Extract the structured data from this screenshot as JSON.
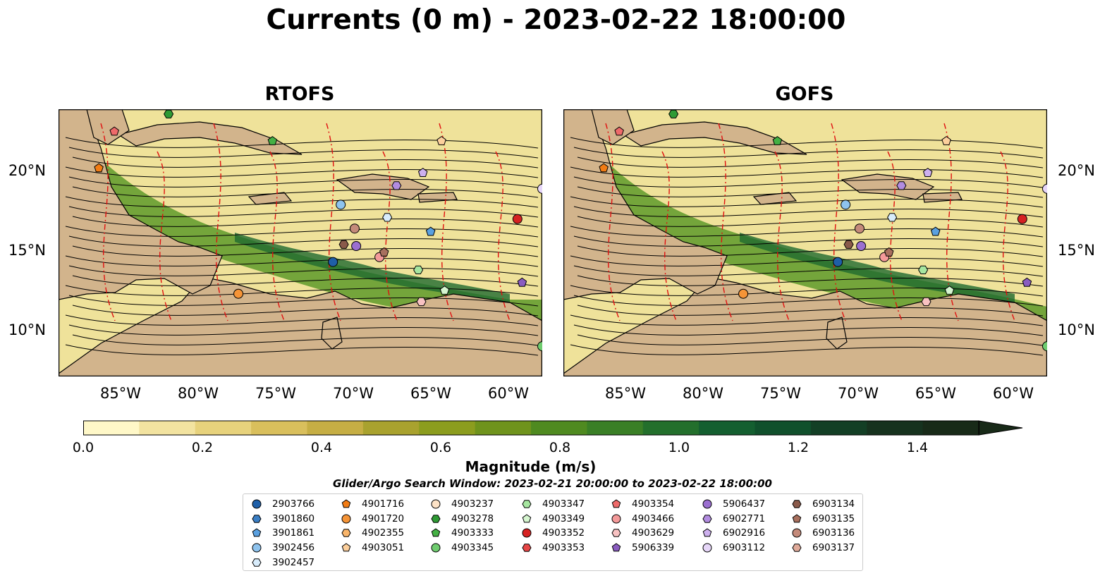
{
  "title": "Currents (0 m) - 2023-02-22 18:00:00",
  "panels": [
    {
      "name": "RTOFS"
    },
    {
      "name": "GOFS"
    }
  ],
  "lon_ticks": [
    "85°W",
    "80°W",
    "75°W",
    "70°W",
    "65°W",
    "60°W"
  ],
  "lat_ticks": [
    "20°N",
    "15°N",
    "10°N"
  ],
  "colorbar": {
    "label": "Magnitude (m/s)",
    "ticks": [
      "0.0",
      "0.2",
      "0.4",
      "0.6",
      "0.8",
      "1.0",
      "1.2",
      "1.4"
    ],
    "range": [
      0,
      1.6
    ],
    "extend": "max",
    "colors": [
      "#fff8c8",
      "#f2e3a0",
      "#e7d27c",
      "#d9bf5c",
      "#c6ae44",
      "#a9a22e",
      "#8c9d1e",
      "#6f931c",
      "#4f8a20",
      "#3a7f26",
      "#236f2c",
      "#145f30",
      "#10502c",
      "#133f25",
      "#16321e",
      "#182a18"
    ]
  },
  "search_window": "Glider/Argo Search Window: 2023-02-21 20:00:00 to 2023-02-22 18:00:00",
  "legend_columns": [
    [
      {
        "id": "2903766",
        "marker": "circle",
        "color": "#1f5fa8"
      },
      {
        "id": "3901860",
        "marker": "hexagon",
        "color": "#3a7ec4"
      },
      {
        "id": "3901861",
        "marker": "pentagon",
        "color": "#5aa0e0"
      },
      {
        "id": "3902456",
        "marker": "circle",
        "color": "#8ec3ee"
      },
      {
        "id": "3902457",
        "marker": "hexagon",
        "color": "#d8ecfb"
      }
    ],
    [
      {
        "id": "4901716",
        "marker": "pentagon",
        "color": "#f27c14"
      },
      {
        "id": "4901720",
        "marker": "circle",
        "color": "#f59437"
      },
      {
        "id": "4902355",
        "marker": "hexagon",
        "color": "#f9b56a"
      },
      {
        "id": "4903051",
        "marker": "pentagon",
        "color": "#fccf9c"
      }
    ],
    [
      {
        "id": "4903237",
        "marker": "circle",
        "color": "#fde2c6"
      },
      {
        "id": "4903278",
        "marker": "hexagon",
        "color": "#2e9a34"
      },
      {
        "id": "4903333",
        "marker": "pentagon",
        "color": "#44b044"
      },
      {
        "id": "4903345",
        "marker": "circle",
        "color": "#6fcc6f"
      }
    ],
    [
      {
        "id": "4903347",
        "marker": "hexagon",
        "color": "#a6e6a0"
      },
      {
        "id": "4903349",
        "marker": "pentagon",
        "color": "#d6f6d0"
      },
      {
        "id": "4903352",
        "marker": "circle",
        "color": "#d62222"
      },
      {
        "id": "4903353",
        "marker": "hexagon",
        "color": "#e64646"
      }
    ],
    [
      {
        "id": "4903354",
        "marker": "pentagon",
        "color": "#ee6a6a"
      },
      {
        "id": "4903466",
        "marker": "circle",
        "color": "#f49a9a"
      },
      {
        "id": "4903629",
        "marker": "hexagon",
        "color": "#f8c2c2"
      },
      {
        "id": "5906339",
        "marker": "pentagon",
        "color": "#8a5cc0"
      }
    ],
    [
      {
        "id": "5906437",
        "marker": "circle",
        "color": "#9b6fd0"
      },
      {
        "id": "6902771",
        "marker": "hexagon",
        "color": "#b28ce0"
      },
      {
        "id": "6902916",
        "marker": "pentagon",
        "color": "#cdb0ee"
      },
      {
        "id": "6903112",
        "marker": "circle",
        "color": "#e6d6f8"
      }
    ],
    [
      {
        "id": "6903134",
        "marker": "hexagon",
        "color": "#8a5a4a"
      },
      {
        "id": "6903135",
        "marker": "pentagon",
        "color": "#a8705e"
      },
      {
        "id": "6903136",
        "marker": "circle",
        "color": "#c48a7a"
      },
      {
        "id": "6903137",
        "marker": "hexagon",
        "color": "#e0aa9a"
      }
    ]
  ],
  "map_markers": [
    {
      "id": "2903766",
      "lon": -71.5,
      "lat": 14.2
    },
    {
      "id": "3901861",
      "lon": -65.2,
      "lat": 16.1
    },
    {
      "id": "3902456",
      "lon": -71.0,
      "lat": 17.8
    },
    {
      "id": "3902457",
      "lon": -68.0,
      "lat": 17.0
    },
    {
      "id": "4901716",
      "lon": -86.6,
      "lat": 20.1
    },
    {
      "id": "4901720",
      "lon": -77.6,
      "lat": 12.2
    },
    {
      "id": "4903051",
      "lon": -64.5,
      "lat": 21.8
    },
    {
      "id": "4903278",
      "lon": -82.1,
      "lat": 23.5
    },
    {
      "id": "4903333",
      "lon": -75.4,
      "lat": 21.8
    },
    {
      "id": "4903345",
      "lon": -58.0,
      "lat": 8.9
    },
    {
      "id": "4903347",
      "lon": -66.0,
      "lat": 13.7
    },
    {
      "id": "4903349",
      "lon": -64.3,
      "lat": 12.4
    },
    {
      "id": "4903352",
      "lon": -59.6,
      "lat": 16.9
    },
    {
      "id": "4903354",
      "lon": -85.6,
      "lat": 22.4
    },
    {
      "id": "4903466",
      "lon": -68.5,
      "lat": 14.5
    },
    {
      "id": "4903629",
      "lon": -65.8,
      "lat": 11.7
    },
    {
      "id": "5906339",
      "lon": -59.3,
      "lat": 12.9
    },
    {
      "id": "5906437",
      "lon": -70.0,
      "lat": 15.2
    },
    {
      "id": "6902771",
      "lon": -67.4,
      "lat": 19.0
    },
    {
      "id": "6902916",
      "lon": -65.7,
      "lat": 19.8
    },
    {
      "id": "6903112",
      "lon": -58.0,
      "lat": 18.8
    },
    {
      "id": "6903134",
      "lon": -70.8,
      "lat": 15.3
    },
    {
      "id": "6903135",
      "lon": -68.2,
      "lat": 14.8
    },
    {
      "id": "6903136",
      "lon": -70.1,
      "lat": 16.3
    }
  ]
}
